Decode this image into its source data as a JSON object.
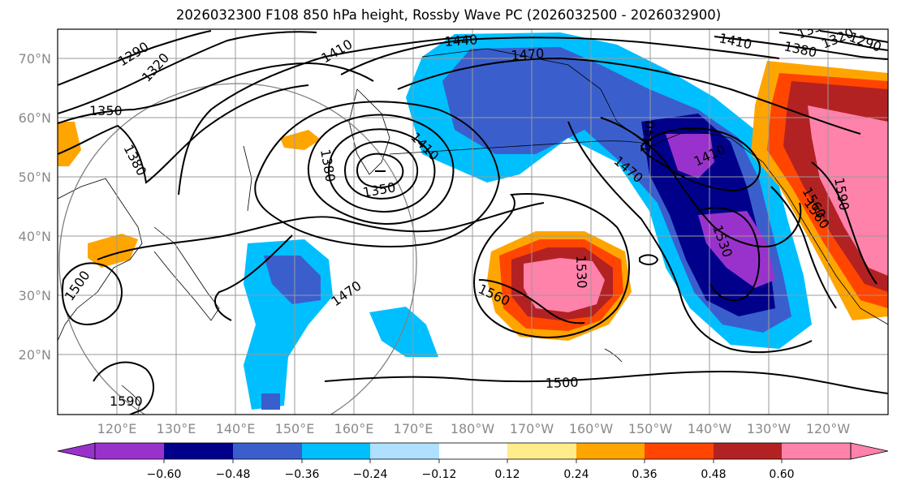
{
  "title": "2026032300 F108 850 hPa height, Rossby Wave PC (2026032500 - 2026032900)",
  "lat_labels": [
    "70°N",
    "60°N",
    "50°N",
    "40°N",
    "30°N",
    "20°N"
  ],
  "lon_labels": [
    "120°E",
    "130°E",
    "140°E",
    "150°E",
    "160°E",
    "170°E",
    "180°W",
    "170°W",
    "160°W",
    "150°W",
    "140°W",
    "130°W",
    "120°W"
  ],
  "colorbar": {
    "ticks": [
      "−0.60",
      "−0.48",
      "−0.36",
      "−0.24",
      "−0.12",
      "0.12",
      "0.24",
      "0.36",
      "0.48",
      "0.60"
    ],
    "colors": [
      "#9932cc",
      "#00008b",
      "#3a5fcd",
      "#00bfff",
      "#b0e0ff",
      "#ffffff",
      "#ffec8b",
      "#ffa500",
      "#ff4500",
      "#b22222",
      "#ff82ab"
    ]
  },
  "contour_labels": [
    "1290",
    "1320",
    "1350",
    "1380",
    "1410",
    "1440",
    "1470",
    "1410",
    "1380",
    "1350",
    "1320",
    "1290",
    "1410",
    "1350",
    "1380",
    "1470",
    "1440",
    "1410",
    "1530",
    "1560",
    "1530",
    "1500",
    "1470",
    "1500",
    "1560",
    "1590",
    "1590",
    "1560"
  ]
}
